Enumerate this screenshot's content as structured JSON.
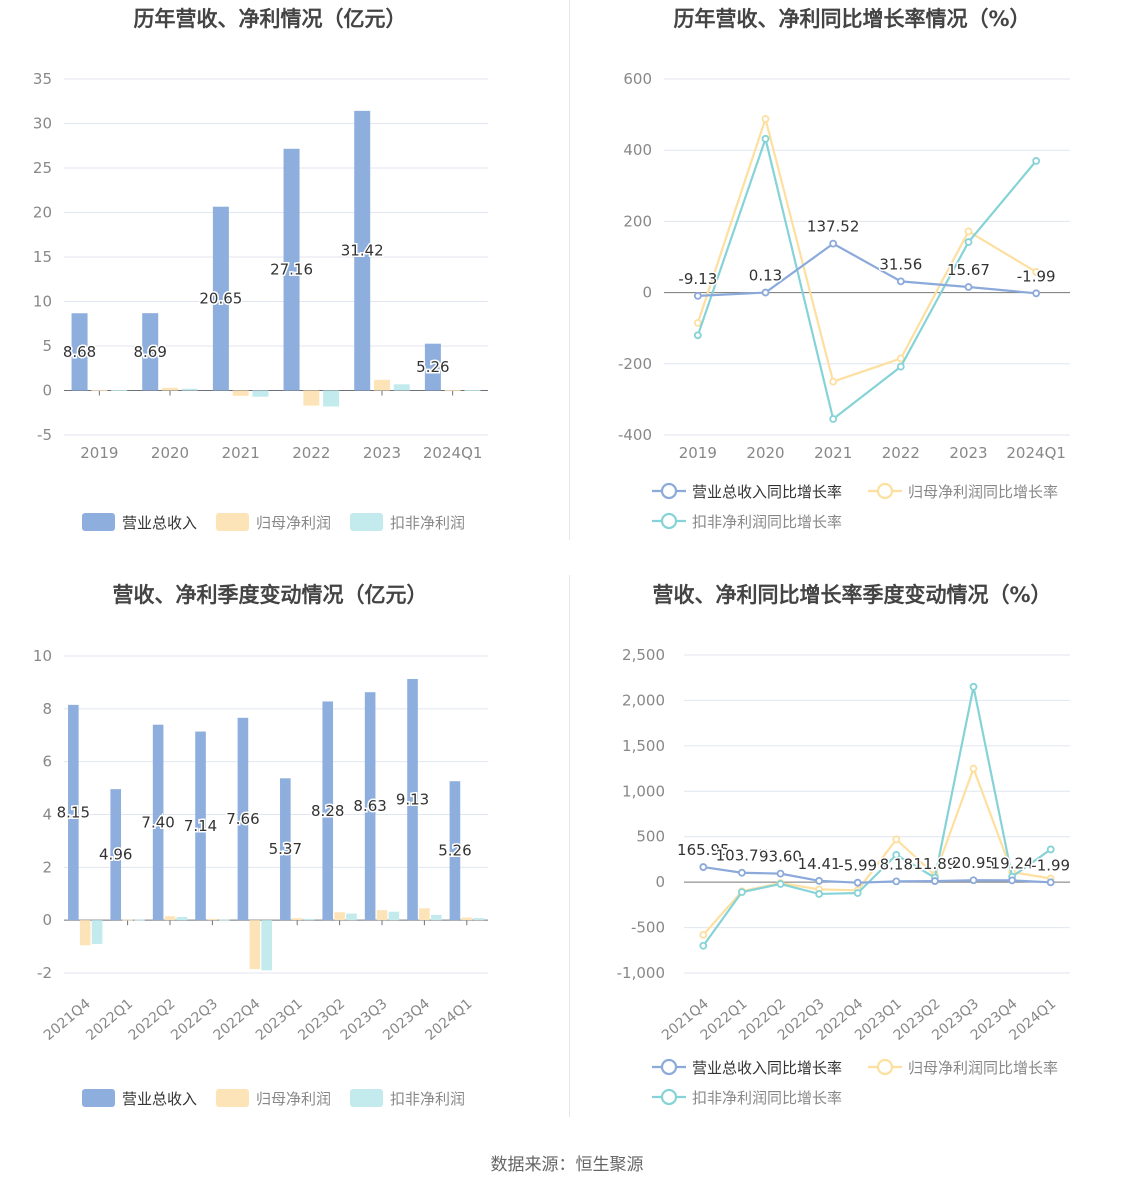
{
  "source": "数据来源：恒生聚源",
  "colors": {
    "revenue": "#8eaedd",
    "parent_profit": "#fde4b8",
    "deducted_profit": "#c3ebee",
    "revenue_line": "#8ba9da",
    "parent_line": "#fddfa0",
    "deducted_line": "#86d3d7"
  },
  "chart_data": [
    {
      "id": "annual_revenue",
      "type": "bar",
      "title": "历年营收、净利情况（亿元）",
      "categories": [
        "2019",
        "2020",
        "2021",
        "2022",
        "2023",
        "2024Q1"
      ],
      "yticks": [
        35,
        30,
        25,
        20,
        15,
        10,
        5,
        0,
        -5
      ],
      "ylim": [
        -5,
        35
      ],
      "series": [
        {
          "name": "营业总收入",
          "values": [
            8.68,
            8.69,
            20.65,
            27.16,
            31.42,
            5.26
          ],
          "labels": [
            "8.68",
            "8.69",
            "20.65",
            "27.16",
            "31.42",
            "5.26"
          ]
        },
        {
          "name": "归母净利润",
          "values": [
            0.05,
            0.3,
            -0.6,
            -1.7,
            1.2,
            0.05
          ]
        },
        {
          "name": "扣非净利润",
          "values": [
            0.05,
            0.2,
            -0.7,
            -1.8,
            0.7,
            0.05
          ]
        }
      ],
      "legend_position": "bottom-center",
      "grid": true
    },
    {
      "id": "annual_growth",
      "type": "line",
      "title": "历年营收、净利同比增长率情况（%）",
      "categories": [
        "2019",
        "2020",
        "2021",
        "2022",
        "2023",
        "2024Q1"
      ],
      "yticks": [
        600,
        400,
        200,
        0,
        -200,
        -400
      ],
      "ylim": [
        -400,
        600
      ],
      "series": [
        {
          "name": "营业总收入同比增长率",
          "values": [
            -9.13,
            0.13,
            137.52,
            31.56,
            15.67,
            -1.99
          ],
          "labels": [
            "-9.13",
            "0.13",
            "137.52",
            "31.56",
            "15.67",
            "-1.99"
          ]
        },
        {
          "name": "归母净利润同比增长率",
          "values": [
            -85,
            488,
            -250,
            -185,
            172,
            58
          ]
        },
        {
          "name": "扣非净利润同比增长率",
          "values": [
            -120,
            432,
            -355,
            -208,
            142,
            370
          ]
        }
      ],
      "legend_position": "bottom-center",
      "grid": true
    },
    {
      "id": "quarterly_revenue",
      "type": "bar",
      "title": "营收、净利季度变动情况（亿元）",
      "categories": [
        "2021Q4",
        "2022Q1",
        "2022Q2",
        "2022Q3",
        "2022Q4",
        "2023Q1",
        "2023Q2",
        "2023Q3",
        "2023Q4",
        "2024Q1"
      ],
      "yticks": [
        10,
        8,
        6,
        4,
        2,
        0,
        -2
      ],
      "ylim": [
        -2,
        10
      ],
      "series": [
        {
          "name": "营业总收入",
          "values": [
            8.15,
            4.96,
            7.4,
            7.14,
            7.66,
            5.37,
            8.28,
            8.63,
            9.13,
            5.26
          ],
          "labels": [
            "8.15",
            "4.96",
            "7.40",
            "7.14",
            "7.66",
            "5.37",
            "8.28",
            "8.63",
            "9.13",
            "5.26"
          ]
        },
        {
          "name": "归母净利润",
          "values": [
            -0.95,
            0.02,
            0.15,
            0.05,
            -1.85,
            0.08,
            0.3,
            0.38,
            0.45,
            0.1
          ]
        },
        {
          "name": "扣非净利润",
          "values": [
            -0.9,
            0.02,
            0.12,
            0.02,
            -1.9,
            0.05,
            0.25,
            0.32,
            0.2,
            0.08
          ]
        }
      ],
      "legend_position": "bottom-center",
      "grid": true
    },
    {
      "id": "quarterly_growth",
      "type": "line",
      "title": "营收、净利同比增长率季度变动情况（%）",
      "categories": [
        "2021Q4",
        "2022Q1",
        "2022Q2",
        "2022Q3",
        "2022Q4",
        "2023Q1",
        "2023Q2",
        "2023Q3",
        "2023Q4",
        "2024Q1"
      ],
      "yticks": [
        2500,
        2000,
        1500,
        1000,
        500,
        0,
        -500,
        -1000
      ],
      "ytick_labels": [
        "2,500",
        "2,000",
        "1,500",
        "1,000",
        "500",
        "0",
        "-500",
        "-1,000"
      ],
      "ylim": [
        -1000,
        2500
      ],
      "series": [
        {
          "name": "营业总收入同比增长率",
          "values": [
            165.95,
            103.77,
            93.6,
            14.41,
            -5.99,
            8.18,
            11.89,
            20.95,
            19.24,
            -1.99
          ],
          "labels": [
            "165.95",
            "103.77",
            "93.60",
            "14.41",
            "-5.99",
            "8.18",
            "11.89",
            "20.95",
            "19.24",
            "-1.99"
          ]
        },
        {
          "name": "归母净利润同比增长率",
          "values": [
            -580,
            -100,
            -10,
            -80,
            -90,
            470,
            80,
            1250,
            110,
            40
          ]
        },
        {
          "name": "扣非净利润同比增长率",
          "values": [
            -700,
            -110,
            -20,
            -130,
            -120,
            300,
            50,
            2150,
            60,
            360
          ]
        }
      ],
      "legend_position": "bottom-center",
      "grid": true
    }
  ]
}
